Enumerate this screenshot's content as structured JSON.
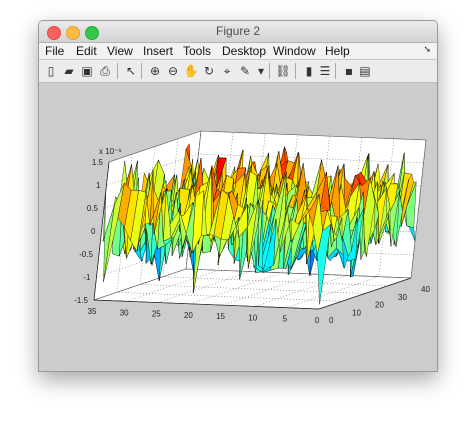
{
  "window": {
    "title": "Figure 2"
  },
  "menu": [
    "File",
    "Edit",
    "View",
    "Insert",
    "Tools",
    "Desktop",
    "Window",
    "Help"
  ],
  "toolbar": [
    {
      "name": "new-figure-icon",
      "glyph": "▯"
    },
    {
      "name": "open-file-icon",
      "glyph": "▰"
    },
    {
      "name": "save-icon",
      "glyph": "▣"
    },
    {
      "name": "print-icon",
      "glyph": "⎙"
    },
    {
      "name": "pointer-icon",
      "glyph": "↖"
    },
    {
      "name": "zoom-in-icon",
      "glyph": "⊕"
    },
    {
      "name": "zoom-out-icon",
      "glyph": "⊖"
    },
    {
      "name": "pan-icon",
      "glyph": "✋"
    },
    {
      "name": "rotate-3d-icon",
      "glyph": "↻"
    },
    {
      "name": "data-cursor-icon",
      "glyph": "⌖"
    },
    {
      "name": "brush-icon",
      "glyph": "✎"
    },
    {
      "name": "brush-dropdown-icon",
      "glyph": "▾"
    },
    {
      "name": "link-plot-icon",
      "glyph": "⛓"
    },
    {
      "name": "colorbar-icon",
      "glyph": "▮"
    },
    {
      "name": "legend-icon",
      "glyph": "☰"
    },
    {
      "name": "hide-plot-tools-icon",
      "glyph": "▪"
    },
    {
      "name": "show-plot-tools-icon",
      "glyph": "▤"
    }
  ],
  "chart_data": {
    "type": "surface",
    "title": "",
    "x_ticks": [
      "0",
      "10",
      "20",
      "30",
      "40"
    ],
    "xlim": [
      0,
      40
    ],
    "y_ticks": [
      "0",
      "5",
      "10",
      "15",
      "20",
      "25",
      "30",
      "35"
    ],
    "ylim": [
      0,
      35
    ],
    "z_ticks": [
      "-1.5",
      "-1",
      "-0.5",
      "0",
      "0.5",
      "1",
      "1.5"
    ],
    "zlim": [
      -1.5,
      1.5
    ],
    "z_exponent": "x 10⁻⁶",
    "grid": true,
    "colormap": "jet"
  }
}
